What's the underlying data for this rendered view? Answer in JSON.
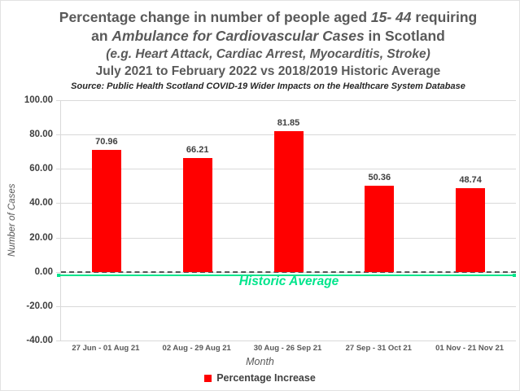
{
  "palette": {
    "bar_red": "#FF0000",
    "accent_green": "#00E58C",
    "title_gray": "#595959",
    "tick_gray": "#404040",
    "grid_gray": "#D9D9D9",
    "zero_line_gray": "#555555",
    "border_gray": "#E2E2E2",
    "background": "#FFFFFF"
  },
  "title": {
    "line1_pre": "Percentage change in number of people aged ",
    "line1_italic": "15- 44",
    "line1_post": " requiring",
    "line2_pre": "an ",
    "line2_italic": "Ambulance for Cardiovascular Cases",
    "line2_post": " in Scotland",
    "line3": "(e.g. Heart Attack, Cardiac Arrest, Myocarditis, Stroke)",
    "line4": "July 2021 to February 2022 vs 2018/2019 Historic Average",
    "source": "Source: Public Health Scotland COVID-19 Wider Impacts on the Healthcare System Database"
  },
  "chart_data": {
    "type": "bar",
    "title": "Percentage change in number of people aged 15- 44 requiring an Ambulance for Cardiovascular Cases in Scotland",
    "subtitle": "(e.g. Heart Attack, Cardiac Arrest, Myocarditis, Stroke) July 2021 to February 2022 vs 2018/2019 Historic Average",
    "source": "Source: Public Health Scotland COVID-19 Wider Impacts on the Healthcare System Database",
    "categories": [
      "27 Jun - 01 Aug 21",
      "02 Aug - 29 Aug 21",
      "30 Aug - 26 Sep 21",
      "27 Sep - 31 Oct 21",
      "01 Nov - 21 Nov 21"
    ],
    "values": [
      70.96,
      66.21,
      81.85,
      50.36,
      48.74
    ],
    "value_labels": [
      "70.96",
      "66.21",
      "81.85",
      "50.36",
      "48.74"
    ],
    "xlabel": "Month",
    "ylabel": "Number of Cases",
    "ylim": [
      -40,
      100
    ],
    "ytick_step": 20,
    "ytick_labels": [
      "100.00",
      "80.00",
      "60.00",
      "40.00",
      "20.00",
      "0.00",
      "-20.00",
      "-40.00"
    ],
    "grid": true,
    "bar_color": "#FF0000",
    "legend": {
      "label": "Percentage Increase",
      "color": "#FF0000",
      "position": "bottom"
    },
    "annotation": {
      "text": "Historic Average",
      "y": 0,
      "color": "#00E58C",
      "line_style": "solid"
    },
    "zero_line": {
      "style": "dashed",
      "color": "#555555",
      "y": 0
    }
  }
}
